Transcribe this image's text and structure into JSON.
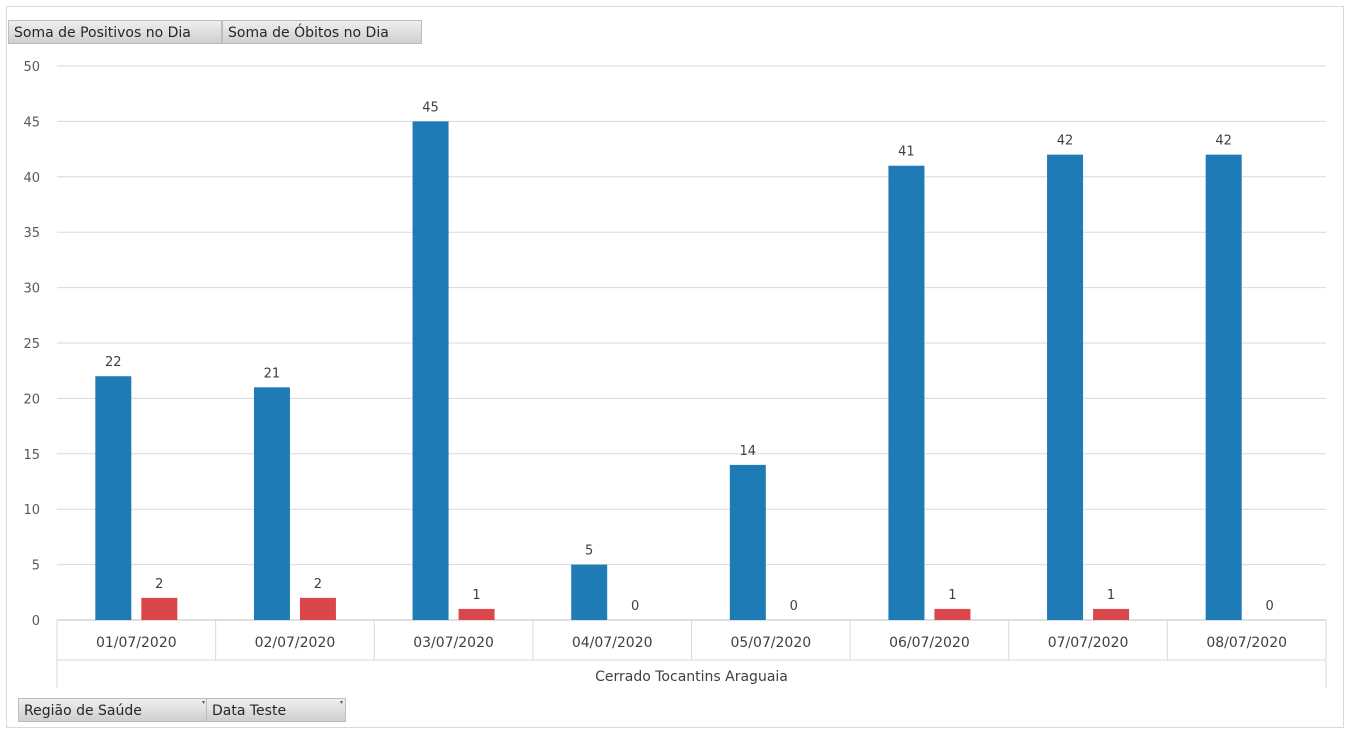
{
  "field_buttons": {
    "values_1": "Soma de Positivos no Dia",
    "values_2": "Soma de Óbitos no Dia",
    "axis_1": "Região de Saúde",
    "axis_2": "Data Teste"
  },
  "chart_data": {
    "type": "bar",
    "group_label": "Cerrado Tocantins Araguaia",
    "categories": [
      "01/07/2020",
      "02/07/2020",
      "03/07/2020",
      "04/07/2020",
      "05/07/2020",
      "06/07/2020",
      "07/07/2020",
      "08/07/2020"
    ],
    "series": [
      {
        "name": "Soma de Positivos no Dia",
        "color": "#1f7bb6",
        "values": [
          22,
          21,
          45,
          5,
          14,
          41,
          42,
          42
        ]
      },
      {
        "name": "Soma de Óbitos no Dia",
        "color": "#d9464b",
        "values": [
          2,
          2,
          1,
          0,
          0,
          1,
          1,
          0
        ]
      }
    ],
    "ylim": [
      0,
      50
    ],
    "yticks": [
      0,
      5,
      10,
      15,
      20,
      25,
      30,
      35,
      40,
      45,
      50
    ],
    "grid": true,
    "data_labels": true
  }
}
